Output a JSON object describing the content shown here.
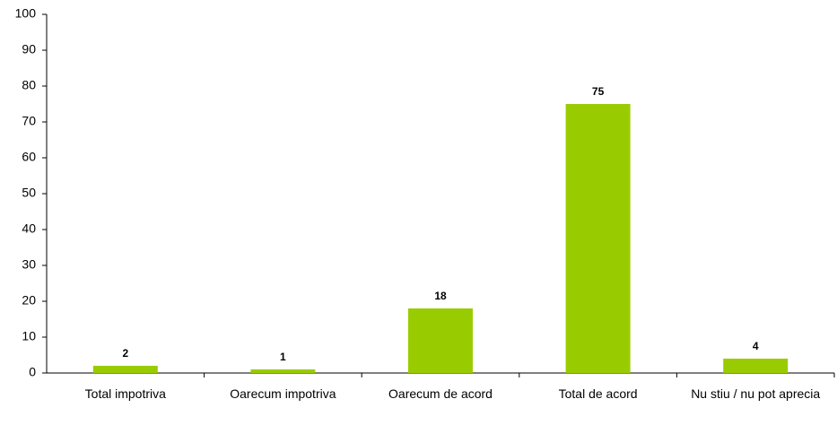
{
  "chart_data": {
    "type": "bar",
    "categories": [
      "Total impotriva",
      "Oarecum impotriva",
      "Oarecum de acord",
      "Total de acord",
      "Nu stiu / nu pot aprecia"
    ],
    "values": [
      2,
      1,
      18,
      75,
      4
    ],
    "color": "#99cc00",
    "ylim": [
      0,
      100
    ],
    "yticks": [
      0,
      10,
      20,
      30,
      40,
      50,
      60,
      70,
      80,
      90,
      100
    ],
    "grid": false
  }
}
